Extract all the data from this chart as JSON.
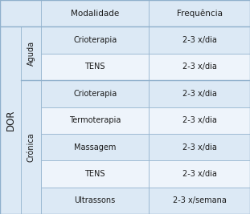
{
  "header": [
    "Modalidade",
    "Frequência"
  ],
  "aguda_rows": [
    [
      "Crioterapia",
      "2-3 x/dia"
    ],
    [
      "TENS",
      "2-3 x/dia"
    ]
  ],
  "cronica_rows": [
    [
      "Crioterapia",
      "2-3 x/dia"
    ],
    [
      "Termoterapia",
      "2-3 x/dia"
    ],
    [
      "Massagem",
      "2-3 x/dia"
    ],
    [
      "TENS",
      "2-3 x/dia"
    ],
    [
      "Ultrassons",
      "2-3 x/semana"
    ]
  ],
  "col1_label": "DOR",
  "col2_aguda": "Aguda",
  "col2_cronica": "Crónica",
  "bg_light": "#dce9f5",
  "bg_white": "#eef4fb",
  "border_color": "#8fb0cc",
  "text_color": "#1a1a1a",
  "header_fontsize": 7.5,
  "cell_fontsize": 7.0,
  "label_fontsize": 8.5,
  "c0": 0.0,
  "c1": 0.085,
  "c2": 0.165,
  "c3": 0.595,
  "c4": 1.0,
  "n_rows": 8
}
